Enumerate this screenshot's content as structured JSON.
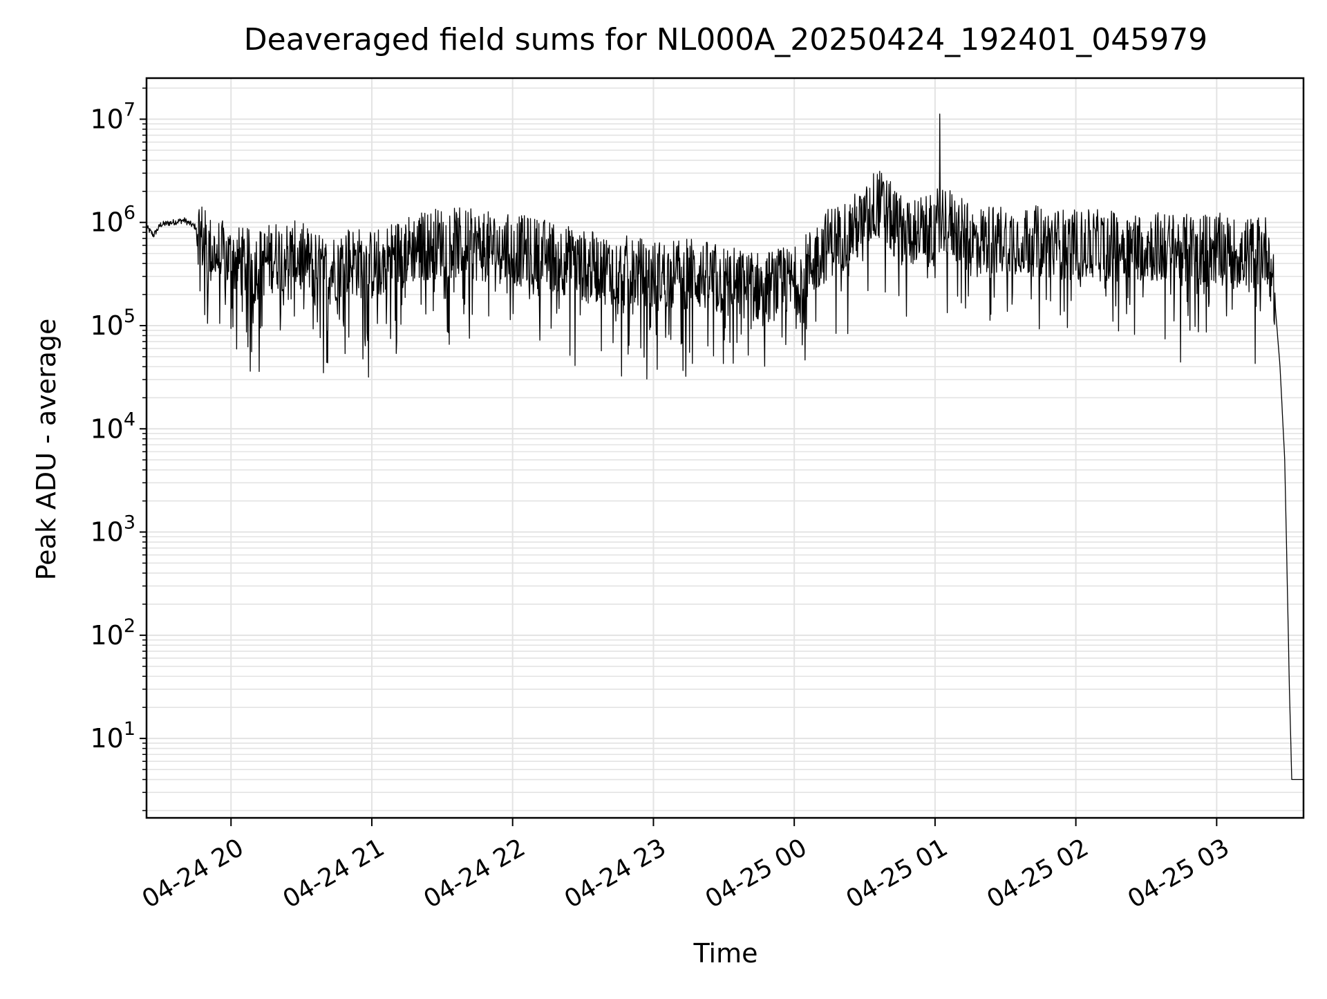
{
  "chart_data": {
    "type": "line",
    "title": "Deaveraged field sums for NL000A_20250424_192401_045979",
    "xlabel": "Time",
    "ylabel": "Peak ADU - average",
    "yscale": "log",
    "ylim": [
      1.7,
      25000000
    ],
    "xlim": [
      "2025-04-24 19:24",
      "2025-04-25 03:37"
    ],
    "x_ticks": [
      "04-24 20",
      "04-24 21",
      "04-24 22",
      "04-24 23",
      "04-25 00",
      "04-25 01",
      "04-25 02",
      "04-25 03"
    ],
    "y_ticks": [
      {
        "base": "10",
        "exp": "1"
      },
      {
        "base": "10",
        "exp": "2"
      },
      {
        "base": "10",
        "exp": "3"
      },
      {
        "base": "10",
        "exp": "4"
      },
      {
        "base": "10",
        "exp": "5"
      },
      {
        "base": "10",
        "exp": "6"
      },
      {
        "base": "10",
        "exp": "7"
      }
    ],
    "grid": true,
    "series": [
      {
        "color": "#000000",
        "x": [
          "2025-04-24 19:24",
          "2025-04-24 19:27",
          "2025-04-24 19:30",
          "2025-04-24 19:35",
          "2025-04-24 19:40",
          "2025-04-24 19:45",
          "2025-04-24 19:50",
          "2025-04-24 20:00",
          "2025-04-24 20:10",
          "2025-04-24 20:20",
          "2025-04-24 20:30",
          "2025-04-24 20:40",
          "2025-04-24 20:50",
          "2025-04-24 21:00",
          "2025-04-24 21:15",
          "2025-04-24 21:30",
          "2025-04-24 21:45",
          "2025-04-24 22:00",
          "2025-04-24 22:15",
          "2025-04-24 22:30",
          "2025-04-24 22:45",
          "2025-04-24 23:00",
          "2025-04-24 23:15",
          "2025-04-24 23:30",
          "2025-04-24 23:45",
          "2025-04-25 00:00",
          "2025-04-25 00:15",
          "2025-04-25 00:30",
          "2025-04-25 00:35",
          "2025-04-25 00:45",
          "2025-04-25 01:00",
          "2025-04-25 01:02",
          "2025-04-25 01:15",
          "2025-04-25 01:30",
          "2025-04-25 01:45",
          "2025-04-25 02:00",
          "2025-04-25 02:15",
          "2025-04-25 02:30",
          "2025-04-25 02:45",
          "2025-04-25 03:00",
          "2025-04-25 03:10",
          "2025-04-25 03:22",
          "2025-04-25 03:25",
          "2025-04-25 03:27",
          "2025-04-25 03:29",
          "2025-04-25 03:30",
          "2025-04-25 03:31",
          "2025-04-25 03:32",
          "2025-04-25 03:37"
        ],
        "y": [
          900000,
          750000,
          950000,
          1000000,
          1050000,
          900000,
          500000,
          400000,
          350000,
          450000,
          420000,
          300000,
          400000,
          350000,
          500000,
          600000,
          550000,
          500000,
          450000,
          350000,
          320000,
          280000,
          300000,
          250000,
          220000,
          240000,
          600000,
          900000,
          1500000,
          800000,
          750000,
          1100000,
          600000,
          650000,
          600000,
          550000,
          550000,
          550000,
          500000,
          520000,
          450000,
          500000,
          150000,
          40000,
          5000,
          400,
          30,
          4,
          4
        ]
      }
    ]
  }
}
